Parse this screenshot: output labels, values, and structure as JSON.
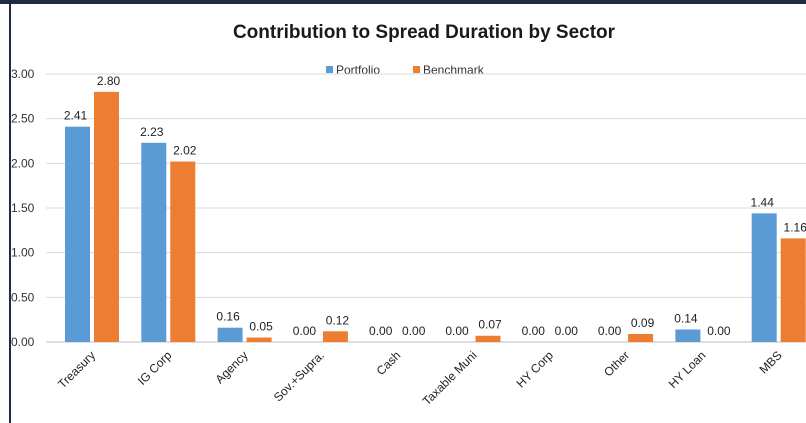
{
  "chart_data": {
    "type": "bar",
    "title": "Contribution to Spread Duration by Sector",
    "xlabel": "",
    "ylabel": "",
    "ylim": [
      0,
      3.0
    ],
    "yticks": [
      "0.00",
      "0.50",
      "1.00",
      "1.50",
      "2.00",
      "2.50",
      "3.00"
    ],
    "categories": [
      "Treasury",
      "IG Corp",
      "Agency",
      "Sov.+Supra.",
      "Cash",
      "Taxable Muni",
      "HY Corp",
      "Other",
      "HY Loan",
      "MBS"
    ],
    "series": [
      {
        "name": "Portfolio",
        "color": "#5b9bd5",
        "values": [
          2.41,
          2.23,
          0.16,
          0.0,
          0.0,
          0.0,
          0.0,
          0.0,
          0.14,
          1.44
        ],
        "labels": [
          "2.41",
          "2.23",
          "0.16",
          "0.00",
          "0.00",
          "0.00",
          "0.00",
          "0.00",
          "0.14",
          "1.44"
        ]
      },
      {
        "name": "Benchmark",
        "color": "#ed7d31",
        "values": [
          2.8,
          2.02,
          0.05,
          0.12,
          0.0,
          0.07,
          0.0,
          0.09,
          0.0,
          1.16
        ],
        "labels": [
          "2.80",
          "2.02",
          "0.05",
          "0.12",
          "0.00",
          "0.07",
          "0.00",
          "0.09",
          "0.00",
          "1.16"
        ]
      }
    ],
    "grid": true,
    "legend": "top-center"
  }
}
